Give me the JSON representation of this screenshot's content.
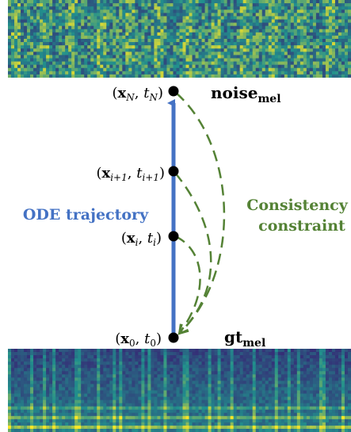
{
  "nodes": [
    {
      "id": "xN",
      "var": "x",
      "var_sub": "N",
      "t": "t",
      "t_sub": "N"
    },
    {
      "id": "xi1",
      "var": "x",
      "var_sub": "i+1",
      "t": "t",
      "t_sub": "i+1"
    },
    {
      "id": "xi",
      "var": "x",
      "var_sub": "i",
      "t": "t",
      "t_sub": "i"
    },
    {
      "id": "x0",
      "var": "x",
      "var_sub": "0",
      "t": "t",
      "t_sub": "0"
    }
  ],
  "labels": {
    "noise": {
      "main": "noise",
      "sub": "mel"
    },
    "gt": {
      "main": "gt",
      "sub": "mel"
    },
    "ode": "ODE trajectory",
    "consistency_line1": "Consistency",
    "consistency_line2": "constraint"
  },
  "colors": {
    "ode": "#4472c4",
    "consistency": "#548235",
    "node": "#000000",
    "spectrogram_low": "#3b0f6f",
    "spectrogram_mid": "#21908d",
    "spectrogram_high": "#fde725"
  },
  "spectrograms": [
    {
      "name": "noise-spectrogram",
      "content": "noisy mel spectrogram"
    },
    {
      "name": "ground-truth-spectrogram",
      "content": "ground-truth mel spectrogram"
    }
  ]
}
